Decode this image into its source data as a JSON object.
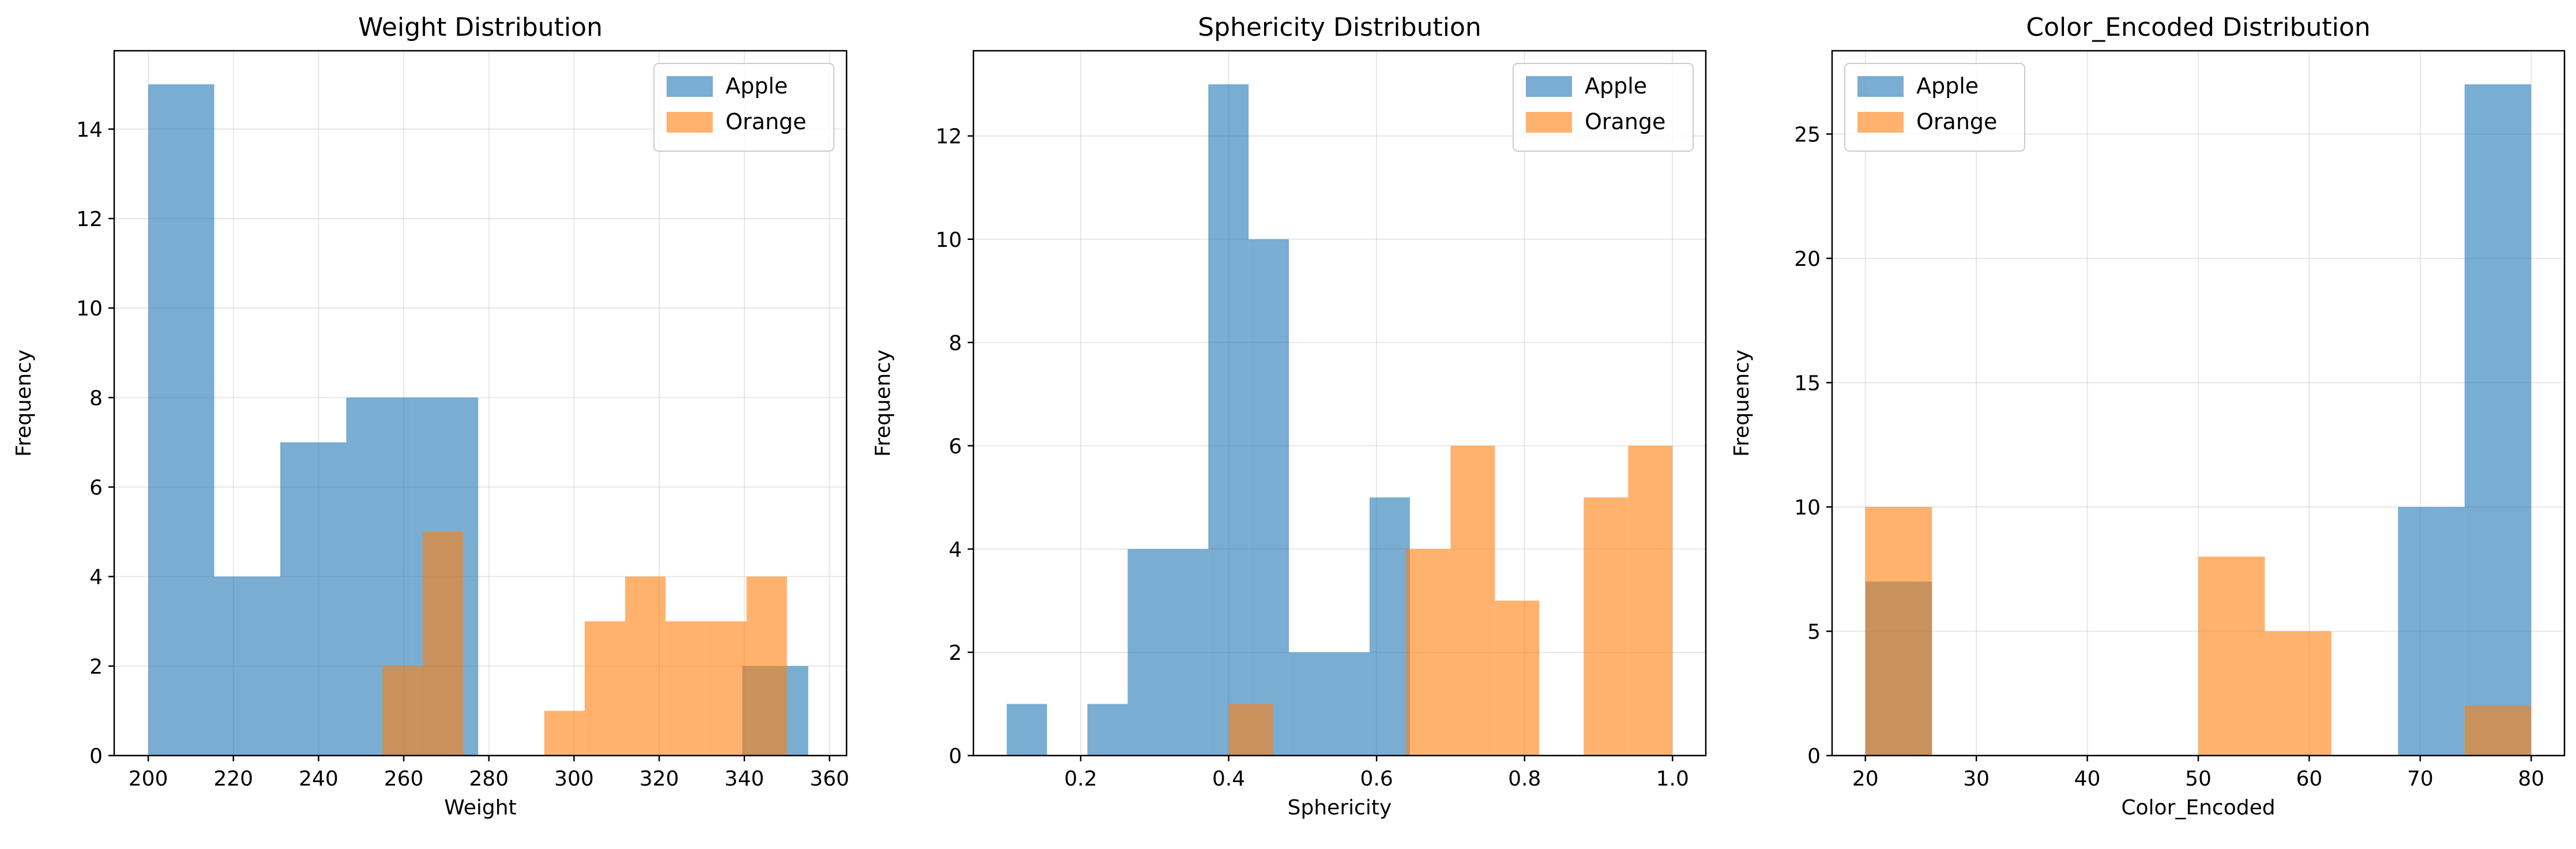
{
  "chart_data": [
    {
      "type": "histogram",
      "title": "Weight Distribution",
      "xlabel": "Weight",
      "ylabel": "Frequency",
      "xlim": [
        192,
        364
      ],
      "ylim": [
        0,
        15.75
      ],
      "xticks": [
        200,
        220,
        240,
        260,
        280,
        300,
        320,
        340,
        360
      ],
      "yticks": [
        0,
        2,
        4,
        6,
        8,
        10,
        12,
        14
      ],
      "grid": true,
      "legend_position": "top-right",
      "series": [
        {
          "name": "Apple",
          "color": "#1f77b4",
          "bin_edges": [
            200.0,
            215.5,
            231.0,
            246.5,
            262.0,
            277.5,
            293.0,
            308.5,
            324.0,
            339.5,
            355.0
          ],
          "counts": [
            15,
            4,
            7,
            8,
            8,
            0,
            0,
            0,
            0,
            2
          ]
        },
        {
          "name": "Orange",
          "color": "#ff7f0e",
          "bin_edges": [
            255.0,
            264.5,
            274.0,
            283.5,
            293.0,
            302.5,
            312.0,
            321.5,
            331.0,
            340.5,
            350.0
          ],
          "counts": [
            2,
            5,
            0,
            0,
            1,
            3,
            4,
            3,
            3,
            4
          ]
        }
      ]
    },
    {
      "type": "histogram",
      "title": "Sphericity Distribution",
      "xlabel": "Sphericity",
      "ylabel": "Frequency",
      "xlim": [
        0.055,
        1.045
      ],
      "ylim": [
        0,
        13.65
      ],
      "xticks": [
        0.2,
        0.4,
        0.6,
        0.8,
        1.0
      ],
      "xtick_labels": [
        "0.2",
        "0.4",
        "0.6",
        "0.8",
        "1.0"
      ],
      "yticks": [
        0,
        2,
        4,
        6,
        8,
        10,
        12
      ],
      "grid": true,
      "legend_position": "top-right",
      "series": [
        {
          "name": "Apple",
          "color": "#1f77b4",
          "bin_edges": [
            0.1,
            0.1545,
            0.209,
            0.2635,
            0.318,
            0.3725,
            0.427,
            0.4815,
            0.536,
            0.5905,
            0.645
          ],
          "counts": [
            1,
            0,
            1,
            4,
            4,
            13,
            10,
            2,
            2,
            5
          ]
        },
        {
          "name": "Orange",
          "color": "#ff7f0e",
          "bin_edges": [
            0.4,
            0.46,
            0.52,
            0.58,
            0.64,
            0.7,
            0.76,
            0.82,
            0.88,
            0.94,
            1.0
          ],
          "counts": [
            1,
            0,
            0,
            0,
            4,
            6,
            3,
            0,
            5,
            6
          ]
        }
      ]
    },
    {
      "type": "histogram",
      "title": "Color_Encoded Distribution",
      "xlabel": "Color_Encoded",
      "ylabel": "Frequency",
      "xlim": [
        17,
        83
      ],
      "ylim": [
        0,
        28.35
      ],
      "xticks": [
        20,
        30,
        40,
        50,
        60,
        70,
        80
      ],
      "yticks": [
        0,
        5,
        10,
        15,
        20,
        25
      ],
      "grid": true,
      "legend_position": "top-left",
      "series": [
        {
          "name": "Apple",
          "color": "#1f77b4",
          "bin_edges": [
            20,
            26,
            32,
            38,
            44,
            50,
            56,
            62,
            68,
            74,
            80
          ],
          "counts": [
            7,
            0,
            0,
            0,
            0,
            0,
            0,
            0,
            10,
            27
          ]
        },
        {
          "name": "Orange",
          "color": "#ff7f0e",
          "bin_edges": [
            20,
            26,
            32,
            38,
            44,
            50,
            56,
            62,
            68,
            74,
            80
          ],
          "counts": [
            10,
            0,
            0,
            0,
            0,
            8,
            5,
            0,
            0,
            2
          ]
        }
      ]
    }
  ]
}
